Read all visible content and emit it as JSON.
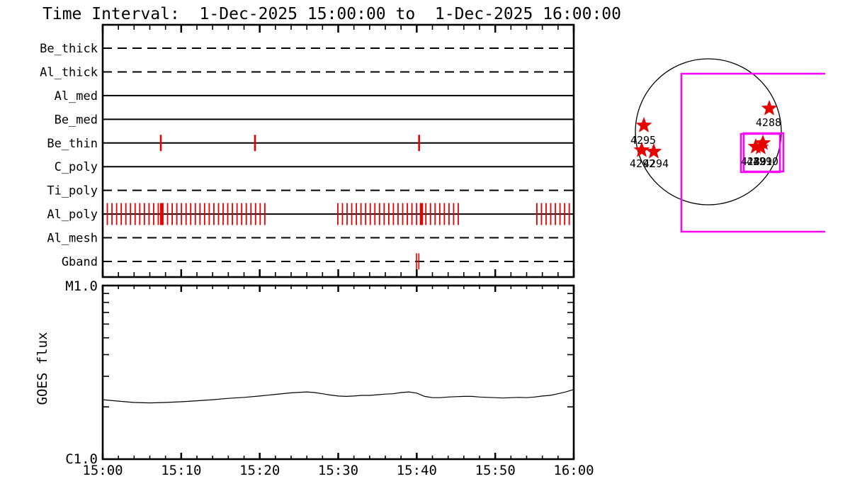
{
  "title": "Time Interval:  1-Dec-2025 15:00:00 to  1-Dec-2025 16:00:00",
  "colors": {
    "ink": "#000000",
    "event_red": "#e80000",
    "fov_magenta": "#ff00ff",
    "background": "#ffffff"
  },
  "chart_data": [
    {
      "id": "filter-exposure-timeline",
      "type": "timeline",
      "x_axis": {
        "start": "15:00",
        "end": "16:00",
        "duration_minutes": 60,
        "major_tick_minutes": 10,
        "minor_tick_minutes": 2,
        "major_tick_labels": [
          "15:00",
          "15:10",
          "15:20",
          "15:30",
          "15:40",
          "15:50",
          "16:00"
        ]
      },
      "rows": [
        {
          "label": "Be_thick",
          "line_style": "dashed",
          "event_ticks_min": [],
          "tick_group_ranges_min": [],
          "bold_ticks_min": []
        },
        {
          "label": "Al_thick",
          "line_style": "dashed",
          "event_ticks_min": [],
          "tick_group_ranges_min": [],
          "bold_ticks_min": []
        },
        {
          "label": "Al_med",
          "line_style": "solid",
          "event_ticks_min": [],
          "tick_group_ranges_min": [],
          "bold_ticks_min": []
        },
        {
          "label": "Be_med",
          "line_style": "solid",
          "event_ticks_min": [],
          "tick_group_ranges_min": [],
          "bold_ticks_min": []
        },
        {
          "label": "Be_thin",
          "line_style": "solid",
          "event_ticks_min": [
            7.4,
            19.4,
            40.3
          ],
          "tick_group_ranges_min": [],
          "bold_ticks_min": []
        },
        {
          "label": "C_poly",
          "line_style": "solid",
          "event_ticks_min": [],
          "tick_group_ranges_min": [],
          "bold_ticks_min": []
        },
        {
          "label": "Ti_poly",
          "line_style": "dashed",
          "event_ticks_min": [],
          "tick_group_ranges_min": [],
          "bold_ticks_min": []
        },
        {
          "label": "Al_poly",
          "line_style": "solid",
          "event_ticks_min": [],
          "tick_group_ranges_min": [
            [
              0.0,
              21.2
            ],
            [
              29.95,
              45.4
            ],
            [
              55.3,
              60.0
            ]
          ],
          "tick_cadence_min": 0.59,
          "bold_ticks_min": [
            7.5,
            40.6
          ]
        },
        {
          "label": "Al_mesh",
          "line_style": "dashed",
          "event_ticks_min": [],
          "tick_group_ranges_min": [],
          "bold_ticks_min": []
        },
        {
          "label": "Gband",
          "line_style": "dashed",
          "event_ticks_min": [
            39.97,
            40.27
          ],
          "tick_group_ranges_min": [],
          "bold_ticks_min": []
        }
      ]
    },
    {
      "id": "goes-flux-plot",
      "type": "line",
      "ylabel": "GOES flux",
      "y_axis": {
        "top_label": "M1.0",
        "bottom_label": "C1.0",
        "scale": "log",
        "min_flux_wm2": 1e-06,
        "max_flux_wm2": 1e-05,
        "minor_tick_flux_e6": [
          9,
          8,
          7,
          6,
          5,
          4,
          3,
          2
        ]
      },
      "x_axis": {
        "major_tick_labels": [
          "15:00",
          "15:10",
          "15:20",
          "15:30",
          "15:40",
          "15:50",
          "16:00"
        ],
        "major_tick_minutes": 10,
        "minor_tick_minutes": 2,
        "duration_minutes": 60
      },
      "series": [
        {
          "name": "GOES flux",
          "points_min_fluxE6": [
            [
              0,
              2.2
            ],
            [
              2,
              2.16
            ],
            [
              4,
              2.12
            ],
            [
              6,
              2.11
            ],
            [
              8,
              2.12
            ],
            [
              10,
              2.14
            ],
            [
              12,
              2.17
            ],
            [
              14,
              2.2
            ],
            [
              16,
              2.24
            ],
            [
              18,
              2.27
            ],
            [
              20,
              2.31
            ],
            [
              22,
              2.36
            ],
            [
              24,
              2.41
            ],
            [
              26,
              2.44
            ],
            [
              27,
              2.42
            ],
            [
              28,
              2.38
            ],
            [
              29,
              2.34
            ],
            [
              30,
              2.31
            ],
            [
              31,
              2.3
            ],
            [
              32,
              2.31
            ],
            [
              33,
              2.33
            ],
            [
              34,
              2.33
            ],
            [
              35,
              2.35
            ],
            [
              36,
              2.37
            ],
            [
              37,
              2.38
            ],
            [
              38,
              2.42
            ],
            [
              39,
              2.44
            ],
            [
              40,
              2.4
            ],
            [
              41,
              2.3
            ],
            [
              42,
              2.26
            ],
            [
              43,
              2.26
            ],
            [
              44,
              2.28
            ],
            [
              45,
              2.29
            ],
            [
              46,
              2.3
            ],
            [
              47,
              2.3
            ],
            [
              48,
              2.28
            ],
            [
              49,
              2.27
            ],
            [
              50,
              2.26
            ],
            [
              51,
              2.25
            ],
            [
              52,
              2.26
            ],
            [
              53,
              2.27
            ],
            [
              54,
              2.26
            ],
            [
              55,
              2.28
            ],
            [
              56,
              2.31
            ],
            [
              57,
              2.33
            ],
            [
              58,
              2.38
            ],
            [
              59,
              2.44
            ],
            [
              60,
              2.52
            ]
          ]
        }
      ]
    },
    {
      "id": "solar-disk-map",
      "type": "scatter",
      "active_regions": [
        {
          "noaa": "4295",
          "star_x_rsun": -0.883,
          "star_y_rsun": -0.087,
          "label_x_rsun": -0.893,
          "label_y_rsun": 0.117
        },
        {
          "noaa": "4292",
          "star_x_rsun": -0.913,
          "star_y_rsun": 0.252,
          "label_x_rsun": -0.903,
          "label_y_rsun": 0.437
        },
        {
          "noaa": "4294",
          "star_x_rsun": -0.748,
          "star_y_rsun": 0.272,
          "label_x_rsun": -0.718,
          "label_y_rsun": 0.437
        },
        {
          "noaa": "4288",
          "star_x_rsun": 0.835,
          "star_y_rsun": -0.32,
          "label_x_rsun": 0.825,
          "label_y_rsun": -0.126
        },
        {
          "noaa": "4289",
          "star_x_rsun": 0.65,
          "star_y_rsun": 0.204,
          "label_x_rsun": 0.621,
          "label_y_rsun": 0.408
        },
        {
          "noaa": "4291",
          "star_x_rsun": 0.718,
          "star_y_rsun": 0.214,
          "label_x_rsun": 0.699,
          "label_y_rsun": 0.408
        },
        {
          "noaa": "4290",
          "star_x_rsun": 0.748,
          "star_y_rsun": 0.155,
          "label_x_rsun": 0.786,
          "label_y_rsun": 0.408
        }
      ],
      "fov_boxes": [
        {
          "name": "wide-fov",
          "x1_rsun": -0.369,
          "y1_rsun": -0.796,
          "x2_rsun": 1.602,
          "y2_rsun": 1.369,
          "open_right": true
        },
        {
          "name": "small-fov-a",
          "x1_rsun": 0.447,
          "y1_rsun": 0.029,
          "x2_rsun": 0.981,
          "y2_rsun": 0.553,
          "open_right": false
        },
        {
          "name": "small-fov-b",
          "x1_rsun": 0.485,
          "y1_rsun": 0.019,
          "x2_rsun": 1.029,
          "y2_rsun": 0.544,
          "open_right": false
        }
      ]
    }
  ]
}
